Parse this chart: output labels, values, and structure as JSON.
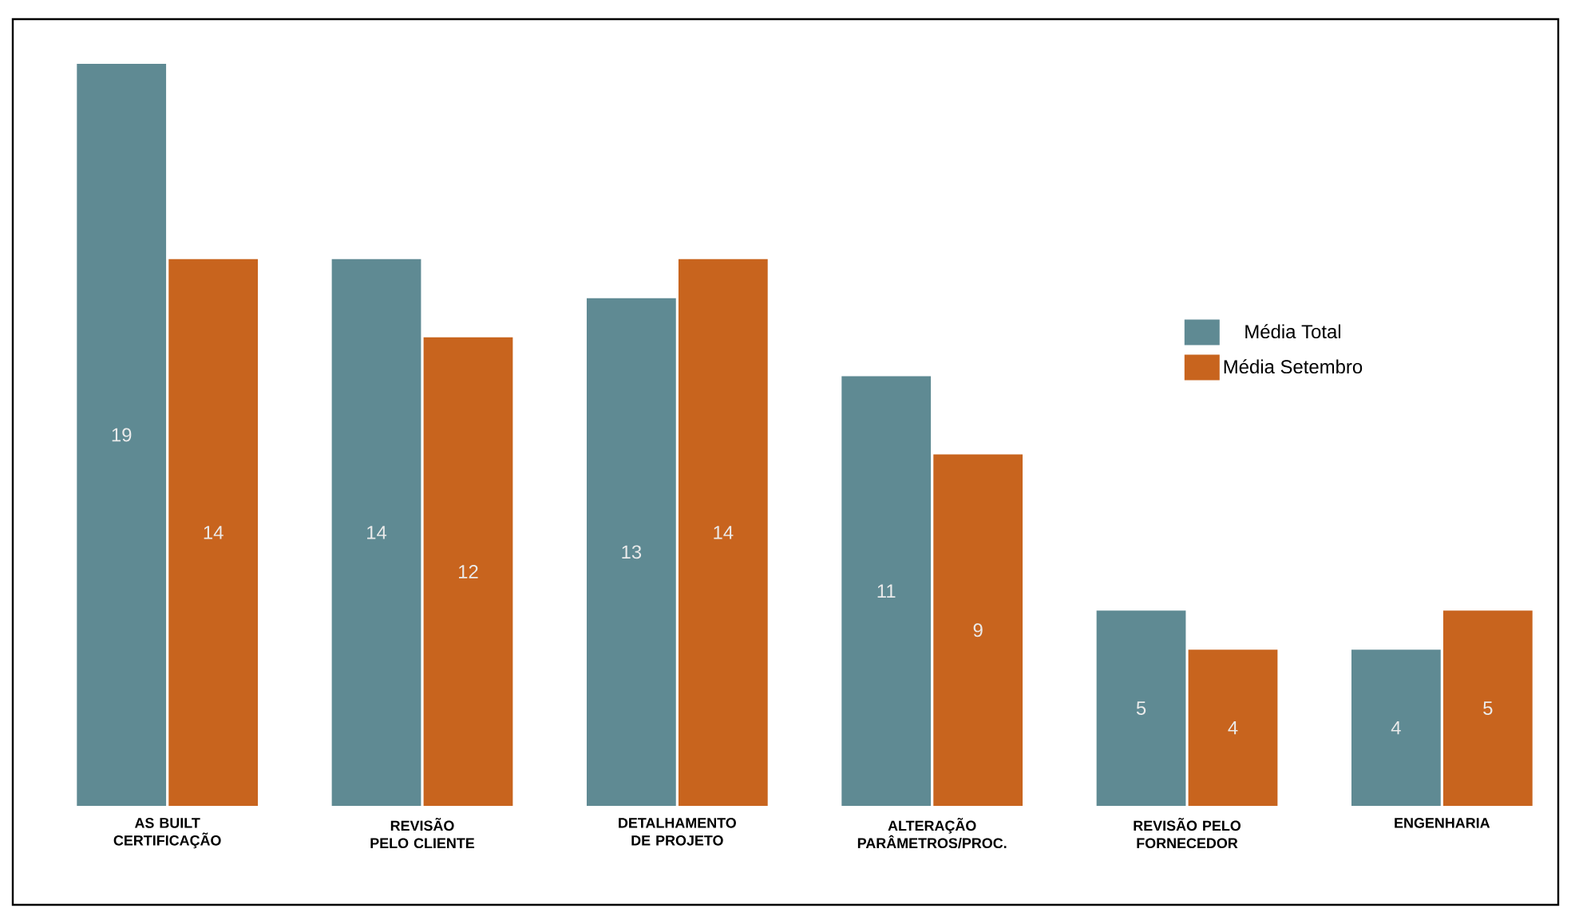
{
  "chart_data": {
    "type": "bar",
    "categories": [
      "AS BUILT CERTIFICAÇÃO",
      "REVISÃO PELO CLIENTE",
      "DETALHAMENTO DE PROJETO",
      "ALTERAÇÃO PARÂMETROS/PROC.",
      "REVISÃO PELO FORNECEDOR",
      "ENGENHARIA"
    ],
    "series": [
      {
        "name": "Média Total",
        "color": "#5f8a93",
        "values": [
          19,
          14,
          13,
          11,
          5,
          4
        ]
      },
      {
        "name": "Média Setembro",
        "color": "#c8641e",
        "values": [
          14,
          12,
          14,
          9,
          4,
          5
        ]
      }
    ],
    "data_labels": true,
    "legend": "right"
  }
}
